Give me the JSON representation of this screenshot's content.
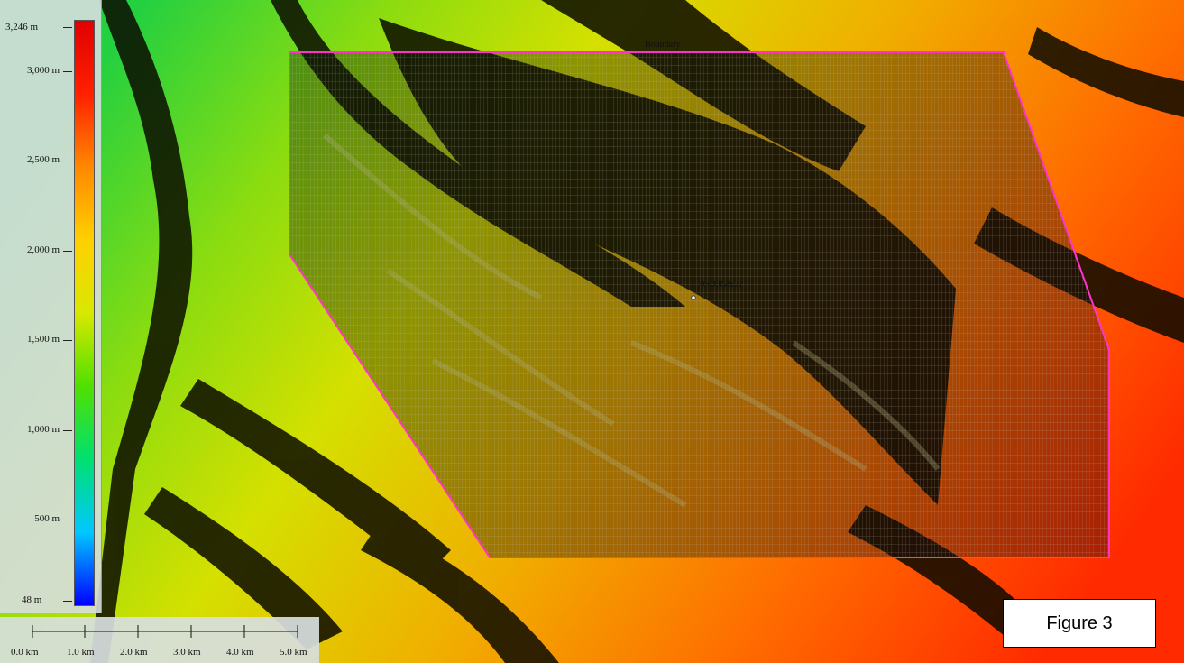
{
  "legend": {
    "title": "",
    "min_label": "48 m",
    "max_label": "3,246 m",
    "min_value": 48,
    "max_value": 3246,
    "ticks": [
      {
        "label": "3,000 m",
        "value": 3000
      },
      {
        "label": "2,500 m",
        "value": 2500
      },
      {
        "label": "2,000 m",
        "value": 2000
      },
      {
        "label": "1,500 m",
        "value": 1500
      },
      {
        "label": "1,000 m",
        "value": 1000
      },
      {
        "label": "500 m",
        "value": 500
      }
    ],
    "colors": [
      "#0000ff",
      "#00c8ff",
      "#00e070",
      "#50e000",
      "#d8e800",
      "#ffd000",
      "#ff8800",
      "#ff2000",
      "#e00000"
    ]
  },
  "scale_bar": {
    "labels": [
      "0.0 km",
      "1.0 km",
      "2.0 km",
      "3.0 km",
      "4.0 km",
      "5.0 km"
    ]
  },
  "map": {
    "boundary_label": "Boundary",
    "marker_label": "0SD3G&22",
    "boundary_color": "#ff33cc"
  },
  "figure_label": "Figure 3"
}
